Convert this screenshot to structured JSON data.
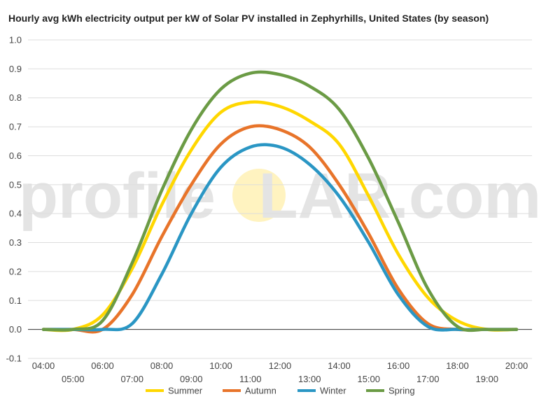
{
  "chart_data": {
    "type": "line",
    "title": "Hourly avg kWh electricity output per kW of Solar PV installed in Zephyrhills, United States (by season)",
    "watermark": "profileSOLAR.com",
    "watermark_parts": [
      "profile",
      "S",
      "LAR.com"
    ],
    "x": [
      "04:00",
      "05:00",
      "06:00",
      "07:00",
      "08:00",
      "09:00",
      "10:00",
      "11:00",
      "12:00",
      "13:00",
      "14:00",
      "15:00",
      "16:00",
      "17:00",
      "18:00",
      "19:00",
      "20:00"
    ],
    "ylim": [
      -0.1,
      1.0
    ],
    "yticks": [
      "-0.1",
      "0.0",
      "0.1",
      "0.2",
      "0.3",
      "0.4",
      "0.5",
      "0.6",
      "0.7",
      "0.8",
      "0.9",
      "1.0"
    ],
    "grid": true,
    "legend_position": "bottom",
    "series": [
      {
        "name": "Summer",
        "color": "#ffd700",
        "values": [
          0.0,
          0.0,
          0.05,
          0.21,
          0.43,
          0.62,
          0.75,
          0.785,
          0.77,
          0.72,
          0.64,
          0.46,
          0.26,
          0.11,
          0.03,
          0.0,
          0.0
        ]
      },
      {
        "name": "Autumn",
        "color": "#e8742a",
        "values": [
          0.0,
          0.0,
          0.0,
          0.12,
          0.32,
          0.5,
          0.64,
          0.7,
          0.69,
          0.63,
          0.5,
          0.33,
          0.14,
          0.02,
          0.0,
          0.0,
          0.0
        ]
      },
      {
        "name": "Winter",
        "color": "#2a96c4",
        "values": [
          0.0,
          0.0,
          0.0,
          0.02,
          0.19,
          0.4,
          0.56,
          0.63,
          0.63,
          0.57,
          0.46,
          0.3,
          0.12,
          0.01,
          0.0,
          0.0,
          0.0
        ]
      },
      {
        "name": "Spring",
        "color": "#6b9b45",
        "values": [
          0.0,
          0.0,
          0.03,
          0.23,
          0.48,
          0.69,
          0.83,
          0.885,
          0.88,
          0.84,
          0.76,
          0.59,
          0.37,
          0.14,
          0.01,
          0.0,
          0.0
        ]
      }
    ]
  }
}
